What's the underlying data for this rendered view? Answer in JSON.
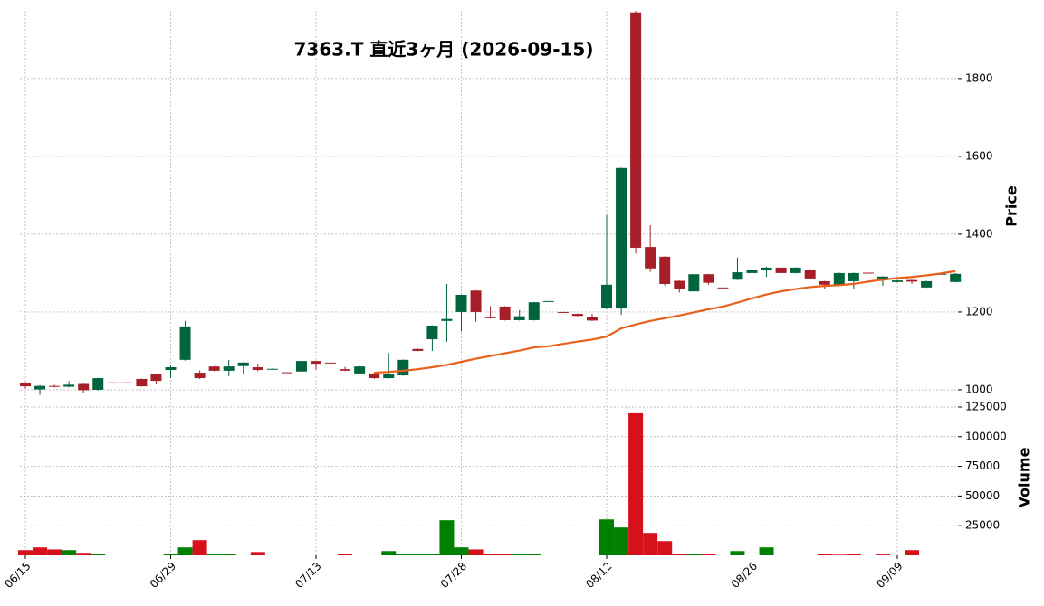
{
  "chart_data": {
    "type": "candlestick",
    "title": "7363.T  直近3ヶ月  (2026-09-15)",
    "categories": [
      "06/15",
      null,
      null,
      null,
      null,
      null,
      null,
      null,
      null,
      null,
      "06/29",
      null,
      null,
      null,
      null,
      null,
      null,
      null,
      null,
      null,
      "07/13",
      null,
      null,
      null,
      null,
      null,
      null,
      null,
      null,
      null,
      "07/28",
      null,
      null,
      null,
      null,
      null,
      null,
      null,
      null,
      null,
      "08/12",
      null,
      null,
      null,
      null,
      null,
      null,
      null,
      null,
      null,
      "08/26",
      null,
      null,
      null,
      null,
      null,
      null,
      null,
      null,
      null,
      "09/09",
      null,
      null,
      null,
      null
    ],
    "open": [
      1018,
      1001,
      1010,
      1008,
      1015,
      1000,
      1019,
      1019,
      1028,
      1040,
      1051,
      1077,
      1044,
      1060,
      1049,
      1061,
      1058,
      1052,
      1045,
      1047,
      1074,
      1070,
      1053,
      1042,
      1042,
      1030,
      1037,
      1105,
      1130,
      1177,
      1200,
      1255,
      1188,
      1214,
      1179,
      1179,
      1227,
      1200,
      1195,
      1187,
      1209,
      1209,
      1970,
      1367,
      1342,
      1280,
      1253,
      1297,
      1263,
      1283,
      1300,
      1307,
      1314,
      1300,
      1309,
      1279,
      1270,
      1279,
      1301,
      1286,
      1277,
      1282,
      1263,
      1297,
      1277
    ],
    "high": [
      1020,
      1012,
      1013,
      1022,
      1016,
      1031,
      1019,
      1019,
      1029,
      1041,
      1063,
      1177,
      1050,
      1061,
      1077,
      1071,
      1067,
      1055,
      1045,
      1075,
      1075,
      1070,
      1059,
      1061,
      1043,
      1095,
      1078,
      1106,
      1166,
      1272,
      1245,
      1256,
      1215,
      1215,
      1205,
      1226,
      1228,
      1200,
      1196,
      1195,
      1449,
      1571,
      1974,
      1423,
      1343,
      1281,
      1298,
      1298,
      1263,
      1340,
      1310,
      1316,
      1315,
      1315,
      1310,
      1280,
      1301,
      1301,
      1301,
      1292,
      1282,
      1283,
      1280,
      1298,
      1300
    ],
    "low": [
      1003,
      987,
      1006,
      1006,
      993,
      998,
      1018,
      1018,
      1008,
      1014,
      1030,
      1075,
      1028,
      1048,
      1035,
      1040,
      1048,
      1052,
      1044,
      1046,
      1052,
      1069,
      1048,
      1041,
      1028,
      1029,
      1036,
      1099,
      1100,
      1123,
      1150,
      1175,
      1183,
      1178,
      1178,
      1178,
      1227,
      1199,
      1189,
      1177,
      1207,
      1193,
      1350,
      1303,
      1268,
      1250,
      1252,
      1270,
      1261,
      1282,
      1299,
      1290,
      1299,
      1299,
      1285,
      1258,
      1269,
      1258,
      1299,
      1267,
      1276,
      1272,
      1262,
      1297,
      1276
    ],
    "close": [
      1009,
      1010,
      1008,
      1013,
      999,
      1030,
      1018,
      1018,
      1009,
      1023,
      1058,
      1163,
      1030,
      1049,
      1060,
      1070,
      1051,
      1054,
      1044,
      1074,
      1067,
      1069,
      1049,
      1060,
      1030,
      1040,
      1077,
      1100,
      1165,
      1182,
      1244,
      1200,
      1184,
      1179,
      1189,
      1225,
      1228,
      1199,
      1190,
      1178,
      1270,
      1570,
      1365,
      1312,
      1272,
      1259,
      1297,
      1275,
      1261,
      1302,
      1307,
      1314,
      1300,
      1314,
      1286,
      1270,
      1300,
      1300,
      1299,
      1291,
      1281,
      1278,
      1279,
      1298,
      1298
    ],
    "up_color": "#00643c",
    "down_color": "#a61f28",
    "ma": {
      "color": "#e8601c",
      "values": [
        null,
        null,
        null,
        null,
        null,
        null,
        null,
        null,
        null,
        null,
        null,
        null,
        null,
        null,
        null,
        null,
        null,
        null,
        null,
        null,
        null,
        null,
        null,
        null,
        1044,
        1046,
        1049,
        1053,
        1058,
        1064,
        1072,
        1080,
        1087,
        1094,
        1101,
        1109,
        1112,
        1118,
        1124,
        1129,
        1137,
        1158,
        1168,
        1177,
        1184,
        1191,
        1199,
        1207,
        1214,
        1224,
        1235,
        1245,
        1253,
        1259,
        1264,
        1267,
        1269,
        1272,
        1278,
        1283,
        1287,
        1290,
        1294,
        1299,
        1305
      ]
    },
    "ylabel": "Price",
    "ylim": [
      979,
      1974
    ],
    "yticks": [
      1000,
      1200,
      1400,
      1600,
      1800
    ],
    "grid": true,
    "volume": {
      "ylabel": "Volume",
      "ylim": [
        0,
        126500
      ],
      "yticks": [
        25000,
        50000,
        75000,
        100000,
        125000
      ],
      "values": [
        4400,
        6700,
        5000,
        4400,
        2100,
        1300,
        0,
        0,
        0,
        0,
        1300,
        6700,
        12800,
        1000,
        1000,
        0,
        2800,
        0,
        0,
        0,
        0,
        0,
        1000,
        0,
        0,
        3600,
        1000,
        1000,
        1000,
        29600,
        6700,
        5000,
        1000,
        1000,
        1000,
        1000,
        0,
        0,
        0,
        0,
        30300,
        23500,
        119700,
        18900,
        12000,
        1000,
        1000,
        800,
        0,
        3600,
        0,
        6700,
        0,
        0,
        0,
        800,
        500,
        1500,
        0,
        700,
        0,
        4400,
        0,
        0,
        0
      ],
      "colors": [
        "#d7111c",
        "#d7111c",
        "#d7111c",
        "#008000",
        "#d7111c",
        "#008000",
        "#d7111c",
        "#d7111c",
        "#d7111c",
        "#d7111c",
        "#008000",
        "#008000",
        "#d7111c",
        "#008000",
        "#008000",
        "#008000",
        "#d7111c",
        "#008000",
        "#d7111c",
        "#008000",
        "#d7111c",
        "#d7111c",
        "#d7111c",
        "#008000",
        "#d7111c",
        "#008000",
        "#008000",
        "#008000",
        "#008000",
        "#008000",
        "#008000",
        "#d7111c",
        "#d7111c",
        "#d7111c",
        "#008000",
        "#008000",
        "#008000",
        "#d7111c",
        "#d7111c",
        "#d7111c",
        "#008000",
        "#008000",
        "#d7111c",
        "#d7111c",
        "#d7111c",
        "#d7111c",
        "#008000",
        "#d7111c",
        "#d7111c",
        "#008000",
        "#008000",
        "#008000",
        "#d7111c",
        "#008000",
        "#d7111c",
        "#d7111c",
        "#d7111c",
        "#d7111c",
        "#d7111c",
        "#d7111c",
        "#008000",
        "#d7111c",
        "#008000",
        "#008000",
        "#008000"
      ]
    }
  }
}
